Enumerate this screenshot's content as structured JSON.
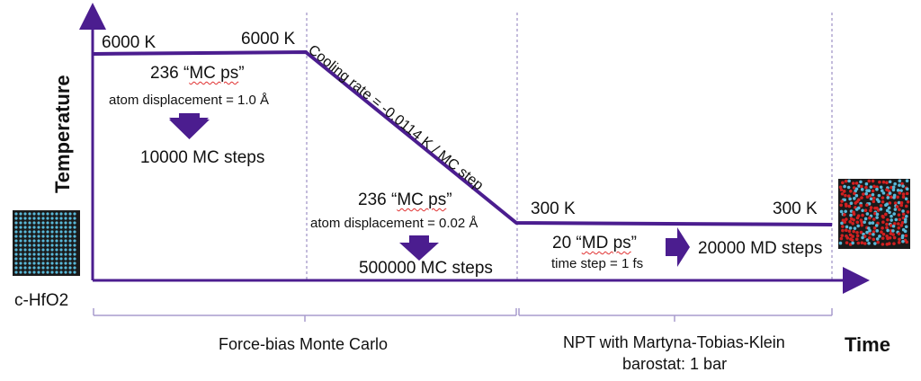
{
  "axis": {
    "y_label": "Temperature",
    "x_label": "Time"
  },
  "phase1": {
    "start_temp": "6000 K",
    "end_temp": "6000 K",
    "duration_num": "236 “",
    "duration_unit": "MC ps",
    "duration_end": "”",
    "displacement": "atom displacement = 1.0 Å",
    "steps": "10000 MC steps"
  },
  "cooling": {
    "rate": "Cooling rate = -0.0114 K / MC step",
    "duration_num": "236 “",
    "duration_unit": "MC ps",
    "duration_end": "”",
    "displacement": "atom displacement = 0.02 Å",
    "steps": "500000 MC steps"
  },
  "phase3": {
    "start_temp": "300 K",
    "end_temp": "300 K",
    "duration_num": "20 “",
    "duration_unit": "MD ps",
    "duration_end": "”",
    "timestep": "time step = 1 fs",
    "steps": "20000 MD steps"
  },
  "structures": {
    "initial_label": "c-HfO2"
  },
  "brackets": {
    "left_label": "Force-bias Monte Carlo",
    "right_line1": "NPT with Martyna-Tobias-Klein",
    "right_line2": "barostat: 1 bar"
  },
  "colors": {
    "primary": "#4b1d8f",
    "divider": "#8a7ab8",
    "bracket": "#a89ccd",
    "oxygen": "#d02020",
    "hafnium": "#58b8d8"
  }
}
